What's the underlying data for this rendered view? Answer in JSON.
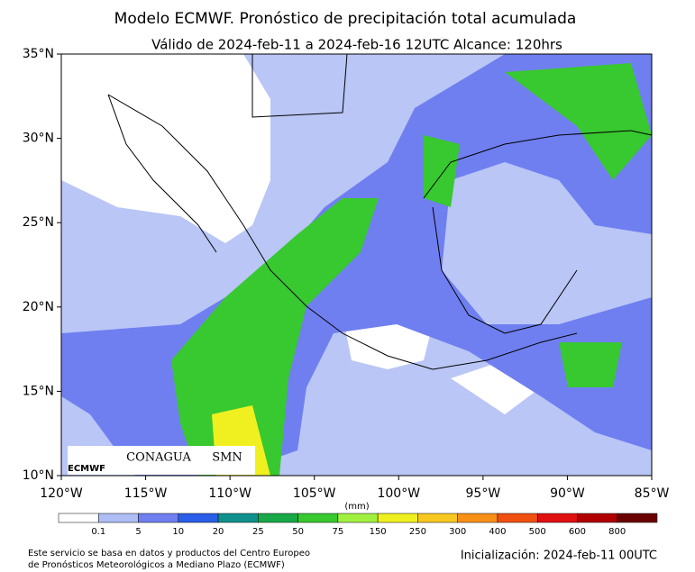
{
  "header": {
    "title": "Modelo ECMWF. Pronóstico de precipitación total acumulada",
    "subtitle": "Válido de 2024-feb-11 a 2024-feb-16 12UTC   Alcance: 120hrs"
  },
  "map": {
    "lon_range": [
      -120,
      -85
    ],
    "lat_range": [
      10,
      35
    ],
    "lon_ticks": [
      {
        "value": -120,
        "label": "120°W"
      },
      {
        "value": -115,
        "label": "115°W"
      },
      {
        "value": -110,
        "label": "110°W"
      },
      {
        "value": -105,
        "label": "105°W"
      },
      {
        "value": -100,
        "label": "100°W"
      },
      {
        "value": -95,
        "label": "95°W"
      },
      {
        "value": -90,
        "label": "90°W"
      },
      {
        "value": -85,
        "label": "85°W"
      }
    ],
    "lat_ticks": [
      {
        "value": 10,
        "label": "10°N"
      },
      {
        "value": 15,
        "label": "15°N"
      },
      {
        "value": 20,
        "label": "20°N"
      },
      {
        "value": 25,
        "label": "25°N"
      },
      {
        "value": 30,
        "label": "30°N"
      },
      {
        "value": 35,
        "label": "35°N"
      }
    ]
  },
  "logos": {
    "ecmwf": "ECMWF",
    "conagua": "CONAGUA",
    "smn": "SMN"
  },
  "colorbar": {
    "unit": "(mm)",
    "ticks": [
      0.1,
      5,
      10,
      20,
      25,
      50,
      75,
      150,
      250,
      300,
      400,
      500,
      600,
      800
    ],
    "colors": [
      "#ffffff",
      "#aebef5",
      "#6f7ff0",
      "#2a5ee8",
      "#10908c",
      "#18a848",
      "#38c830",
      "#a0f040",
      "#f0f020",
      "#f8c820",
      "#f89018",
      "#f05010",
      "#e01010",
      "#b00000",
      "#6a0000"
    ]
  },
  "footer": {
    "source_line1": "Este servicio se basa en datos y productos del Centro Europeo",
    "source_line2": "de Pronósticos Meteorológicos a Mediano Plazo (ECMWF)",
    "init": "Inicialización: 2024-feb-11 00UTC"
  }
}
